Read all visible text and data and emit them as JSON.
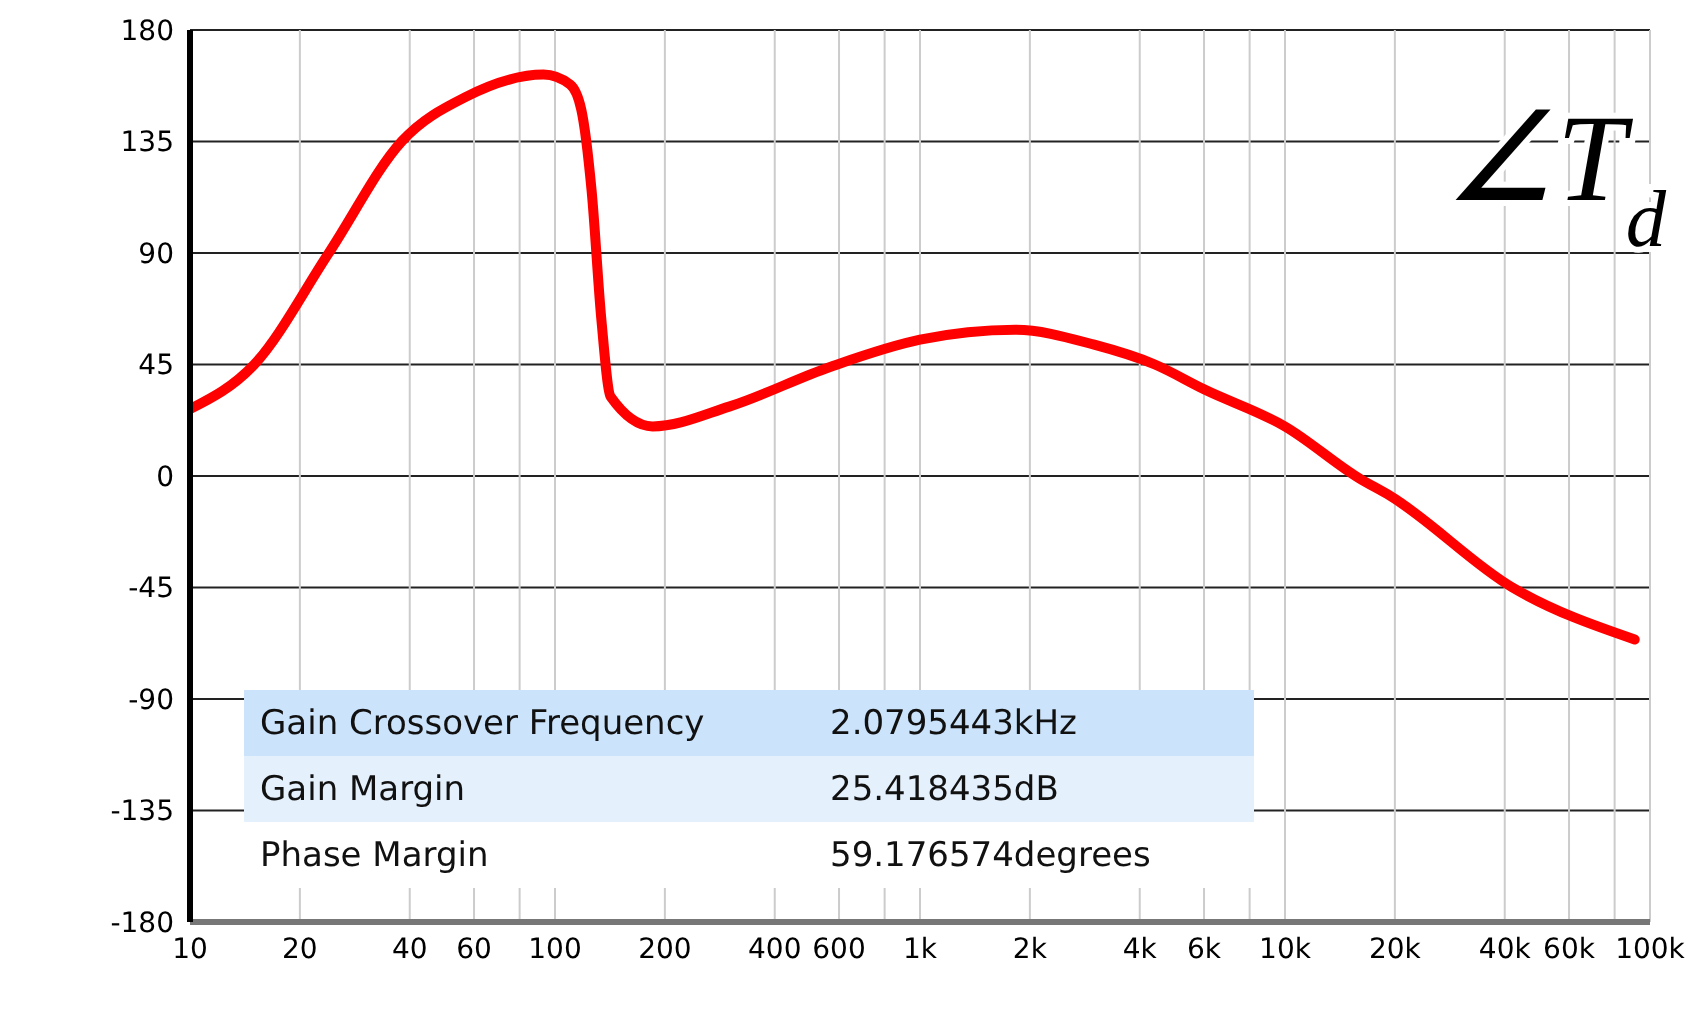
{
  "chart_data": {
    "type": "line",
    "log": "x",
    "x": [
      10,
      15,
      24,
      38,
      57,
      93,
      110,
      118,
      126,
      134,
      142,
      185,
      300,
      567,
      1000,
      1828,
      3000,
      4400,
      6000,
      10000,
      16000,
      19400,
      42000,
      90800
    ],
    "series": [
      {
        "color": "#ff0000",
        "values": [
          27,
          45,
          90,
          135,
          153,
          162,
          158,
          148,
          115,
          63,
          32,
          20,
          28,
          44,
          55,
          59,
          53,
          45,
          35,
          20,
          -1,
          -8,
          -45,
          -66
        ]
      }
    ],
    "xlim": [
      10,
      100000
    ],
    "xticks": [
      10,
      20,
      40,
      60,
      {
        "value": 80,
        "label": null
      },
      100,
      200,
      400,
      600,
      {
        "value": 800,
        "label": null
      },
      {
        "value": 1000,
        "label": "1k"
      },
      {
        "value": 2000,
        "label": "2k"
      },
      {
        "value": 4000,
        "label": "4k"
      },
      {
        "value": 6000,
        "label": "6k"
      },
      {
        "value": 8000,
        "label": null
      },
      {
        "value": 10000,
        "label": "10k"
      },
      {
        "value": 20000,
        "label": "20k"
      },
      {
        "value": 40000,
        "label": "40k"
      },
      {
        "value": 60000,
        "label": "60k"
      },
      {
        "value": 80000,
        "label": null
      },
      {
        "value": 100000,
        "label": "100k"
      }
    ],
    "ylim": [
      -180,
      180
    ],
    "yticks": [
      -180,
      -135,
      -90,
      -45,
      0,
      45,
      90,
      135,
      180
    ],
    "grid": true,
    "marker": "none",
    "line_style": "solid",
    "annotations": [
      "∠T$_{d}$",
      "Gain Crossover Frequency",
      "2.0795443kHz",
      "Gain Margin",
      "25.418435dB",
      "Phase Margin",
      "59.176574degrees"
    ]
  }
}
